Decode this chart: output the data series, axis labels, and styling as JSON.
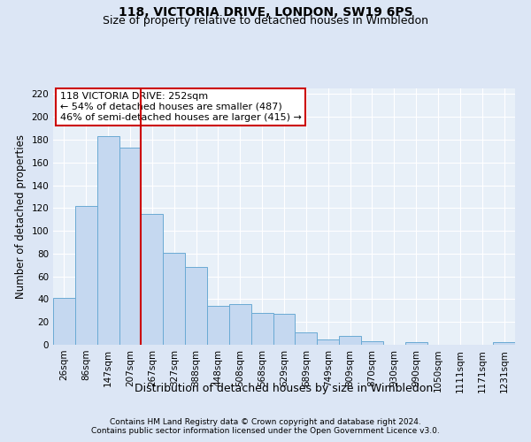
{
  "title": "118, VICTORIA DRIVE, LONDON, SW19 6PS",
  "subtitle": "Size of property relative to detached houses in Wimbledon",
  "xlabel": "Distribution of detached houses by size in Wimbledon",
  "ylabel": "Number of detached properties",
  "footer1": "Contains HM Land Registry data © Crown copyright and database right 2024.",
  "footer2": "Contains public sector information licensed under the Open Government Licence v3.0.",
  "bar_labels": [
    "26sqm",
    "86sqm",
    "147sqm",
    "207sqm",
    "267sqm",
    "327sqm",
    "388sqm",
    "448sqm",
    "508sqm",
    "568sqm",
    "629sqm",
    "689sqm",
    "749sqm",
    "809sqm",
    "870sqm",
    "930sqm",
    "990sqm",
    "1050sqm",
    "1111sqm",
    "1171sqm",
    "1231sqm"
  ],
  "bar_values": [
    41,
    122,
    183,
    173,
    115,
    81,
    68,
    34,
    36,
    28,
    27,
    11,
    5,
    8,
    3,
    0,
    2,
    0,
    0,
    0,
    2
  ],
  "bar_color": "#c5d8f0",
  "bar_edge_color": "#6aaad4",
  "vline_color": "#cc0000",
  "vline_index": 3.5,
  "annotation_text": "118 VICTORIA DRIVE: 252sqm\n← 54% of detached houses are smaller (487)\n46% of semi-detached houses are larger (415) →",
  "annotation_box_color": "#ffffff",
  "annotation_box_edge_color": "#cc0000",
  "bg_color": "#dce6f5",
  "plot_bg_color": "#e8f0f8",
  "ylim": [
    0,
    225
  ],
  "yticks": [
    0,
    20,
    40,
    60,
    80,
    100,
    120,
    140,
    160,
    180,
    200,
    220
  ],
  "title_fontsize": 10,
  "subtitle_fontsize": 9,
  "xlabel_fontsize": 9,
  "ylabel_fontsize": 8.5,
  "tick_fontsize": 7.5,
  "annotation_fontsize": 8,
  "footer_fontsize": 6.5
}
